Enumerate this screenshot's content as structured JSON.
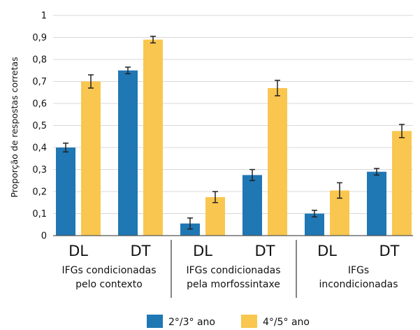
{
  "chart_data": {
    "type": "bar",
    "ylabel": "Proporção de respostas corretas",
    "ylim": [
      0,
      1
    ],
    "yticks": [
      "0",
      "0,1",
      "0,2",
      "0,3",
      "0,4",
      "0,5",
      "0,6",
      "0,7",
      "0,8",
      "0,9",
      "1"
    ],
    "grid": true,
    "legend_position": "bottom",
    "colors": {
      "series_1": "#1f77b4",
      "series_2": "#f9c74f",
      "error_bar": "#222222",
      "grid": "#d8d8d8"
    },
    "groups": [
      {
        "label_lines": [
          "IFGs condicionadas",
          "pelo contexto"
        ],
        "categories": [
          "DL",
          "DT"
        ]
      },
      {
        "label_lines": [
          "IFGs condicionadas",
          "pela morfossintaxe"
        ],
        "categories": [
          "DL",
          "DT"
        ]
      },
      {
        "label_lines": [
          "IFGs",
          "incondicionadas"
        ],
        "categories": [
          "DL",
          "DT"
        ]
      }
    ],
    "categories": [
      "DL",
      "DT",
      "DL",
      "DT",
      "DL",
      "DT"
    ],
    "series": [
      {
        "name": "2°/3° ano",
        "values": [
          0.4,
          0.75,
          0.055,
          0.275,
          0.1,
          0.29
        ],
        "errors": [
          0.02,
          0.015,
          0.025,
          0.025,
          0.015,
          0.015
        ]
      },
      {
        "name": "4°/5° ano",
        "values": [
          0.7,
          0.89,
          0.175,
          0.67,
          0.205,
          0.475
        ],
        "errors": [
          0.03,
          0.015,
          0.025,
          0.035,
          0.035,
          0.03
        ]
      }
    ]
  }
}
